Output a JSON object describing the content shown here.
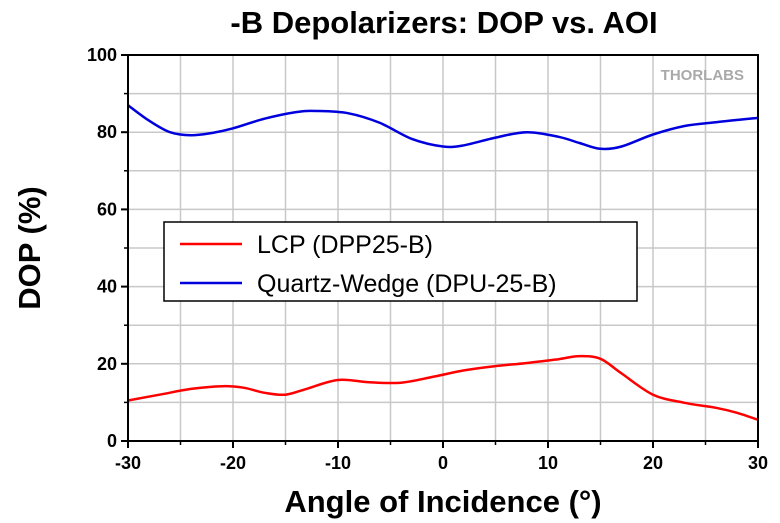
{
  "chart_data": {
    "type": "line",
    "title": "-B Depolarizers: DOP vs. AOI",
    "xlabel": "Angle of Incidence (°)",
    "ylabel": "DOP (%)",
    "xlim": [
      -30,
      30
    ],
    "ylim": [
      0,
      100
    ],
    "xticks": [
      -30,
      -20,
      -10,
      0,
      10,
      20,
      30
    ],
    "yticks": [
      0,
      20,
      40,
      60,
      80,
      100
    ],
    "grid": true,
    "legend_position": "center-left",
    "watermark": "THORLABS",
    "series": [
      {
        "name": "LCP (DPP25-B)",
        "color": "#ff0000",
        "x": [
          -30,
          -27,
          -24,
          -21,
          -19,
          -17,
          -15,
          -13,
          -10,
          -7,
          -4,
          -1,
          2,
          5,
          8,
          11,
          13,
          15,
          17,
          20,
          23,
          26,
          28,
          30
        ],
        "y": [
          10.5,
          12,
          13.5,
          14.2,
          13.8,
          12.5,
          12,
          13.5,
          15.8,
          15.2,
          15.1,
          16.6,
          18.3,
          19.4,
          20.2,
          21.2,
          22,
          21.3,
          17.5,
          12,
          9.9,
          8.6,
          7.3,
          5.5
        ]
      },
      {
        "name": "Quartz-Wedge (DPU-25-B)",
        "color": "#0000dd",
        "x": [
          -30,
          -28,
          -26,
          -24,
          -22,
          -20,
          -17,
          -14,
          -12,
          -9,
          -6,
          -3,
          0,
          2,
          5,
          8,
          11,
          13,
          15,
          17,
          20,
          23,
          26,
          30
        ],
        "y": [
          87,
          83,
          80,
          79.2,
          79.8,
          81,
          83.5,
          85.2,
          85.5,
          84.9,
          82.4,
          78.3,
          76.3,
          76.6,
          78.6,
          80,
          78.8,
          77.2,
          75.7,
          76.3,
          79.4,
          81.6,
          82.6,
          83.7
        ]
      }
    ]
  }
}
